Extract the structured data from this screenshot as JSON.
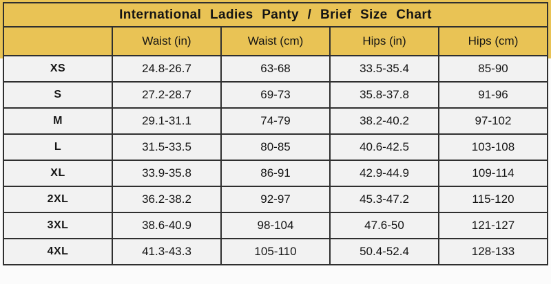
{
  "chart_data": {
    "type": "table",
    "title": "International Ladies Panty / Brief Size Chart",
    "columns": [
      "",
      "Waist (in)",
      "Waist (cm)",
      "Hips (in)",
      "Hips (cm)"
    ],
    "rows": [
      [
        "XS",
        "24.8-26.7",
        "63-68",
        "33.5-35.4",
        "85-90"
      ],
      [
        "S",
        "27.2-28.7",
        "69-73",
        "35.8-37.8",
        "91-96"
      ],
      [
        "M",
        "29.1-31.1",
        "74-79",
        "38.2-40.2",
        "97-102"
      ],
      [
        "L",
        "31.5-33.5",
        "80-85",
        "40.6-42.5",
        "103-108"
      ],
      [
        "XL",
        "33.9-35.8",
        "86-91",
        "42.9-44.9",
        "109-114"
      ],
      [
        "2XL",
        "36.2-38.2",
        "92-97",
        "45.3-47.2",
        "115-120"
      ],
      [
        "3XL",
        "38.6-40.9",
        "98-104",
        "47.6-50",
        "121-127"
      ],
      [
        "4XL",
        "41.3-43.3",
        "105-110",
        "50.4-52.4",
        "128-133"
      ]
    ]
  },
  "colors": {
    "header_bg": "#e9c355",
    "row_bg": "#f2f2f2",
    "border": "#2f2f2f",
    "text": "#141414"
  }
}
